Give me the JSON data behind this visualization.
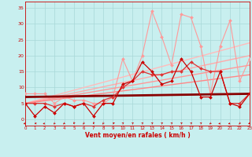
{
  "xlabel": "Vent moyen/en rafales ( km/h )",
  "xlim": [
    0,
    23
  ],
  "ylim": [
    -2,
    37
  ],
  "yticks": [
    0,
    5,
    10,
    15,
    20,
    25,
    30,
    35
  ],
  "xticks": [
    0,
    1,
    2,
    3,
    4,
    5,
    6,
    7,
    8,
    9,
    10,
    11,
    12,
    13,
    14,
    15,
    16,
    17,
    18,
    19,
    20,
    21,
    22,
    23
  ],
  "bg_color": "#c8efef",
  "grid_color": "#a8d8d8",
  "series": [
    {
      "x": [
        0,
        1,
        2,
        3,
        4,
        5,
        6,
        7,
        8,
        9,
        10,
        11,
        12,
        13,
        14,
        15,
        16,
        17,
        18,
        19,
        20,
        21,
        22,
        23
      ],
      "y": [
        5,
        1,
        4,
        2,
        5,
        4,
        5,
        1,
        5,
        5,
        11,
        12,
        18,
        15,
        11,
        12,
        19,
        15,
        7,
        7,
        15,
        5,
        4,
        8
      ],
      "color": "#cc0000",
      "lw": 0.9,
      "ms": 2.0,
      "marker": "D",
      "zorder": 5
    },
    {
      "x": [
        0,
        1,
        2,
        3,
        4,
        5,
        6,
        7,
        8,
        9,
        10,
        11,
        12,
        13,
        14,
        15,
        16,
        17,
        18,
        19,
        20,
        21,
        22,
        23
      ],
      "y": [
        5,
        5,
        5,
        4,
        5,
        4,
        5,
        4,
        6,
        7,
        10,
        12,
        15,
        14,
        14,
        15,
        15,
        18,
        16,
        15,
        15,
        5,
        5,
        8
      ],
      "color": "#dd3333",
      "lw": 0.9,
      "ms": 2.0,
      "marker": "D",
      "zorder": 4
    },
    {
      "x": [
        0,
        1,
        2,
        3,
        4,
        5,
        6,
        7,
        8,
        9,
        10,
        11,
        12,
        13,
        14,
        15,
        16,
        17,
        18,
        19,
        20,
        21,
        22,
        23
      ],
      "y": [
        8,
        8,
        8,
        5,
        7,
        6,
        6,
        5,
        5,
        7,
        19,
        12,
        20,
        34,
        26,
        17,
        33,
        32,
        23,
        8,
        23,
        31,
        12,
        19
      ],
      "color": "#ff9999",
      "lw": 0.8,
      "ms": 2.0,
      "marker": "D",
      "zorder": 3
    },
    {
      "x": [
        0,
        23
      ],
      "y": [
        5,
        24
      ],
      "color": "#ffbbbb",
      "lw": 1.0,
      "ms": 0,
      "marker": "None",
      "zorder": 2
    },
    {
      "x": [
        0,
        23
      ],
      "y": [
        5,
        20
      ],
      "color": "#ffaaaa",
      "lw": 1.0,
      "ms": 0,
      "marker": "None",
      "zorder": 2
    },
    {
      "x": [
        0,
        23
      ],
      "y": [
        5,
        17
      ],
      "color": "#ff9999",
      "lw": 1.0,
      "ms": 0,
      "marker": "None",
      "zorder": 2
    },
    {
      "x": [
        0,
        23
      ],
      "y": [
        5,
        14
      ],
      "color": "#ff8888",
      "lw": 1.0,
      "ms": 0,
      "marker": "None",
      "zorder": 2
    },
    {
      "x": [
        0,
        23
      ],
      "y": [
        7,
        8
      ],
      "color": "#880000",
      "lw": 2.0,
      "ms": 0,
      "marker": "None",
      "zorder": 3
    }
  ],
  "wind_dirs": [
    225,
    270,
    225,
    200,
    200,
    190,
    195,
    190,
    195,
    45,
    30,
    30,
    30,
    30,
    30,
    30,
    30,
    30,
    30,
    200,
    225,
    225,
    195,
    210
  ]
}
